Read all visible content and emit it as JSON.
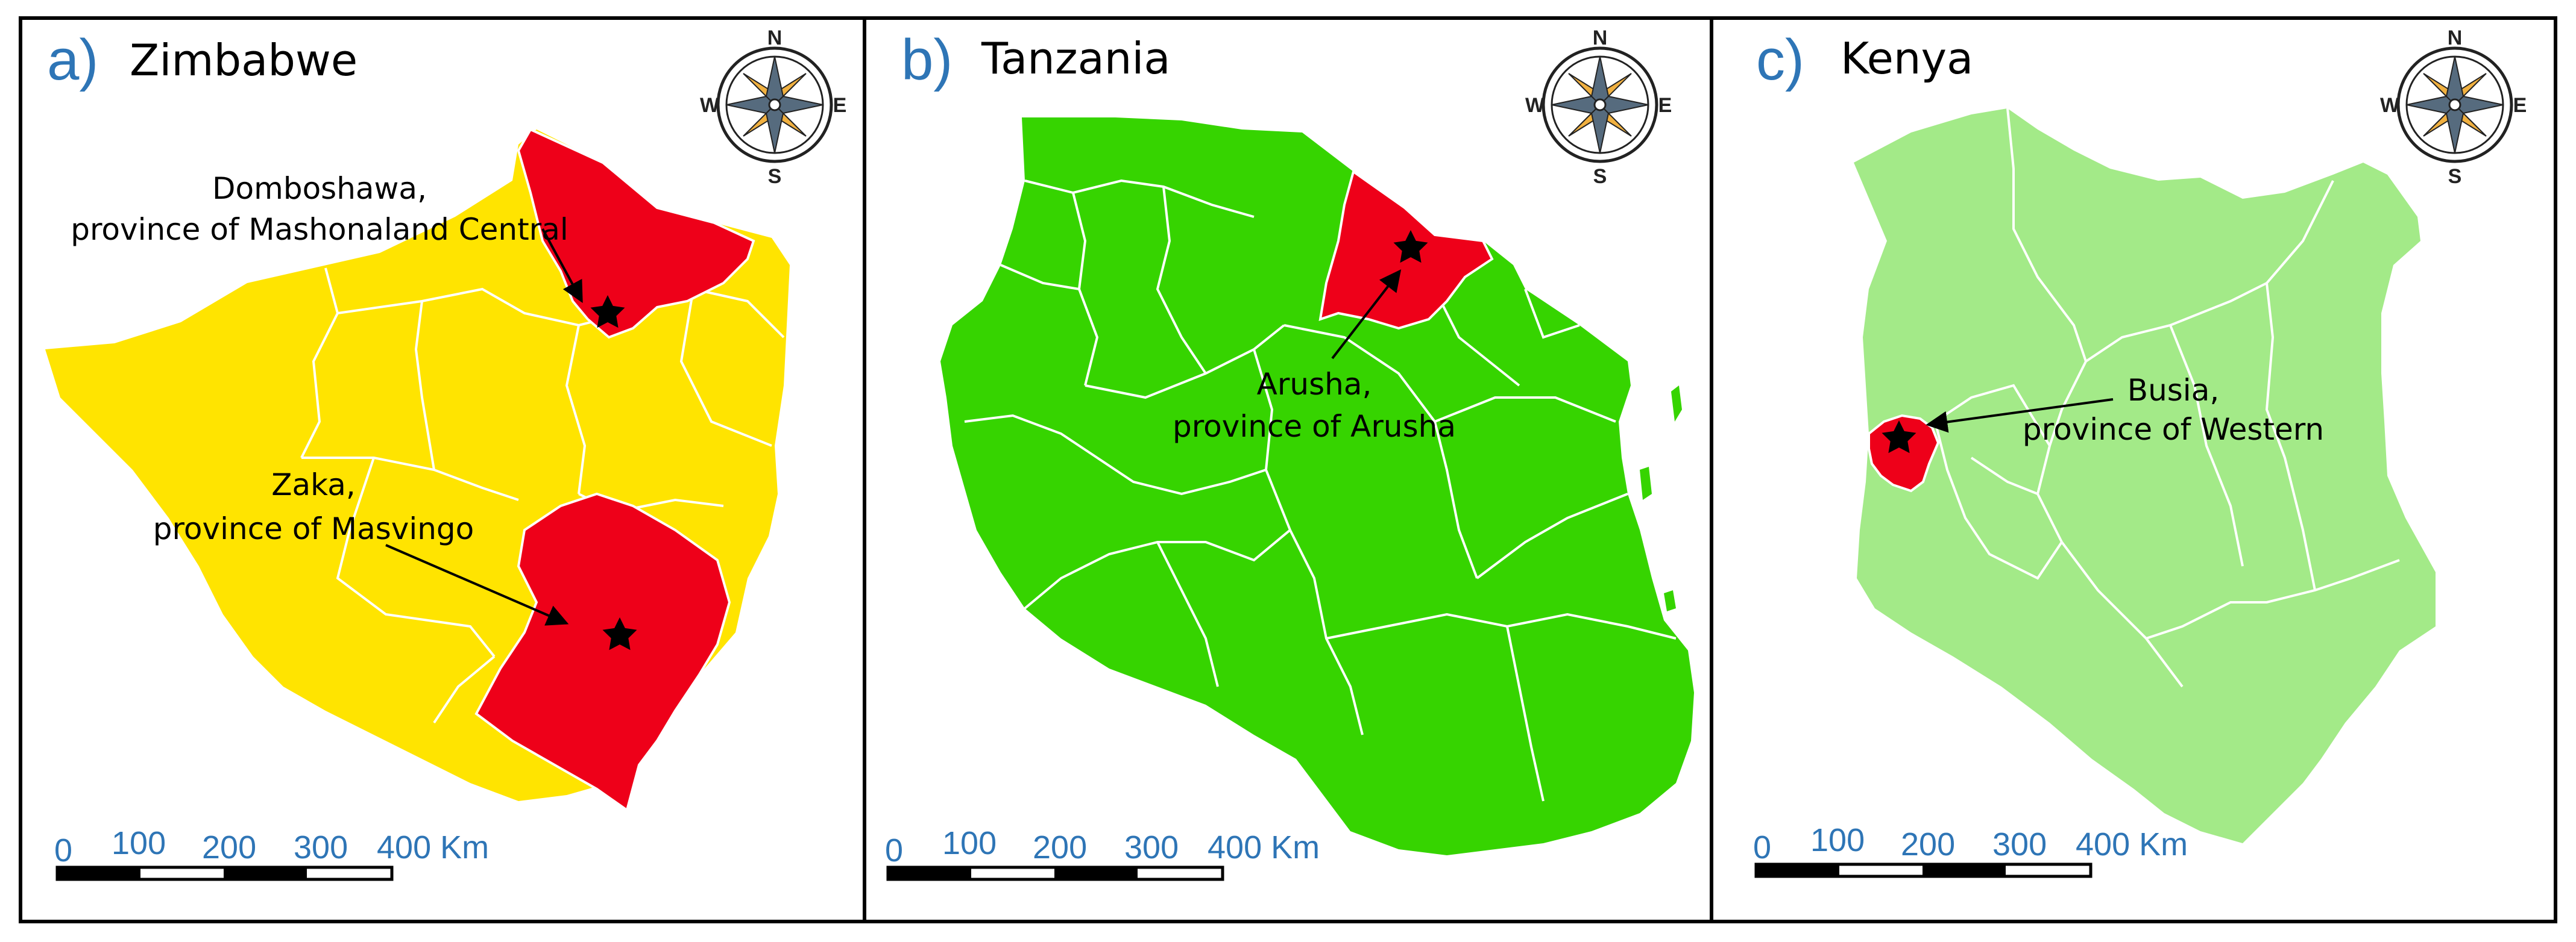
{
  "colors": {
    "accent_blue": "#2E75B6",
    "zimbabwe_fill": "#FFE400",
    "tanzania_fill": "#36D400",
    "kenya_fill": "#A3EA88",
    "highlight_red": "#EE0019",
    "border_white": "#FFFFFF",
    "compass_orange": "#F0B040",
    "compass_slate": "#566B7E"
  },
  "panels": [
    {
      "letter": "a)",
      "country": "Zimbabwe",
      "annotations": [
        {
          "line1": "Domboshawa,",
          "line2": "province of Mashonaland Central"
        },
        {
          "line1": "Zaka,",
          "line2": "province of Masvingo"
        }
      ]
    },
    {
      "letter": "b)",
      "country": "Tanzania",
      "annotations": [
        {
          "line1": "Arusha,",
          "line2": "province of Arusha"
        }
      ]
    },
    {
      "letter": "c)",
      "country": "Kenya",
      "annotations": [
        {
          "line1": "Busia,",
          "line2": "province of Western"
        }
      ]
    }
  ],
  "compass": {
    "n": "N",
    "s": "S",
    "e": "E",
    "w": "W",
    "icon": "compass-rose-icon"
  },
  "scale_bar": {
    "labels": [
      "0",
      "100",
      "200",
      "300",
      "400 Km"
    ]
  },
  "markers": {
    "icon": "star-icon"
  }
}
